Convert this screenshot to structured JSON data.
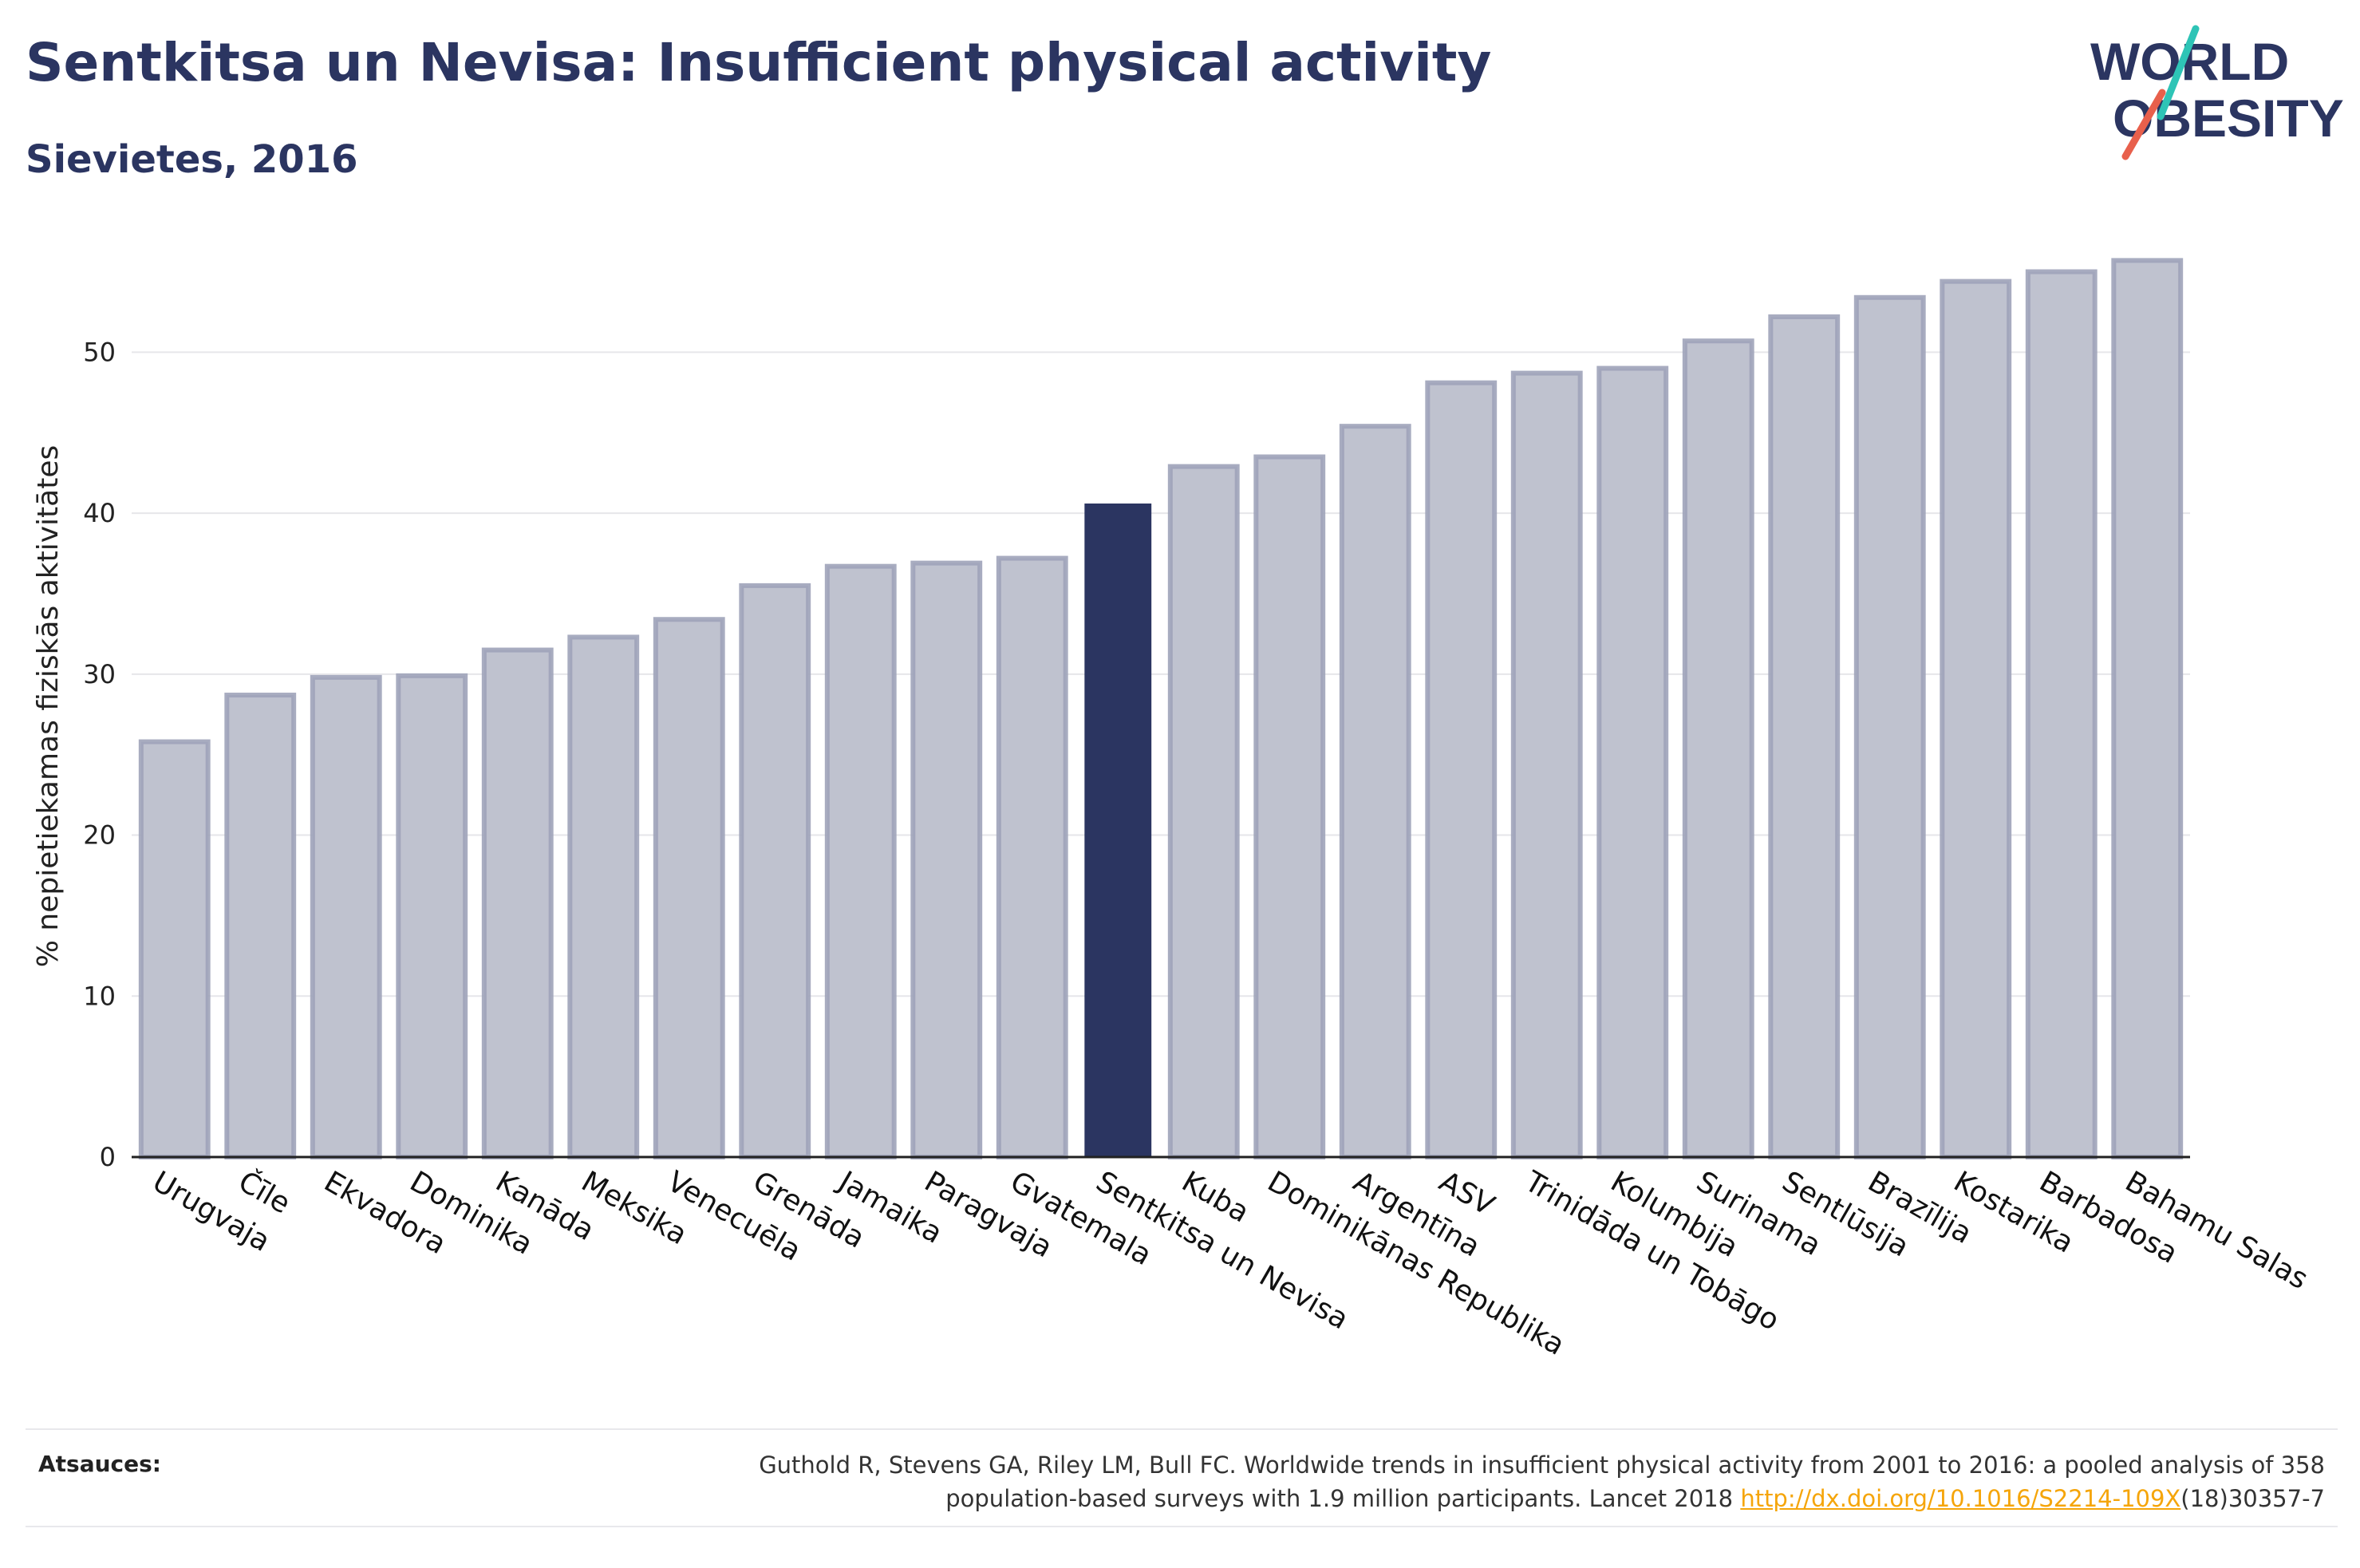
{
  "title": "Sentkitsa un Nevisa: Insufficient physical activity",
  "subtitle": "Sievietes, 2016",
  "logo": {
    "line1": "WORLD",
    "line2": "OBESITY",
    "colors": {
      "text": "#2b3561",
      "slash_teal": "#2ec4b6",
      "slash_coral": "#e8604c"
    }
  },
  "colors": {
    "bar_default": "#bfc2cf",
    "bar_default_stroke": "#9ea3b9",
    "bar_highlight": "#2b3561",
    "axis": "#222222",
    "grid": "#e6e6ea"
  },
  "chart_data": {
    "type": "bar",
    "ylabel": "% nepietiekamas fiziskās aktivitātes",
    "xlabel": "",
    "ylim": [
      0,
      58
    ],
    "yticks": [
      0,
      10,
      20,
      30,
      40,
      50
    ],
    "grid": true,
    "highlight": "Sentkitsa un Nevisa",
    "categories": [
      "Urugvaja",
      "Čīle",
      "Ekvadora",
      "Dominika",
      "Kanāda",
      "Meksika",
      "Venecuēla",
      "Grenāda",
      "Jamaika",
      "Paragvaja",
      "Gvatemala",
      "Sentkitsa un Nevisa",
      "Kuba",
      "Dominikānas Republika",
      "Argentīna",
      "ASV",
      "Trinidāda un Tobāgo",
      "Kolumbija",
      "Surinama",
      "Sentlūsija",
      "Brazīlija",
      "Kostarika",
      "Barbadosa",
      "Bahamu Salas"
    ],
    "values": [
      25.8,
      28.7,
      29.8,
      29.9,
      31.5,
      32.3,
      33.4,
      35.5,
      36.7,
      36.9,
      37.2,
      40.6,
      42.9,
      43.5,
      45.4,
      48.1,
      48.7,
      49.0,
      50.7,
      52.2,
      53.4,
      54.4,
      55.0,
      55.7
    ]
  },
  "footer": {
    "label": "Atsauces:",
    "citation_line1": "Guthold R, Stevens GA, Riley LM, Bull FC. Worldwide trends in insufficient physical activity from 2001 to 2016: a pooled analysis of 358",
    "citation_line2_pre": "population-based surveys with 1.9 million participants. Lancet 2018 ",
    "citation_link": "http://dx.doi.org/10.1016/S2214-109X",
    "citation_line2_post": "(18)30357-7"
  }
}
